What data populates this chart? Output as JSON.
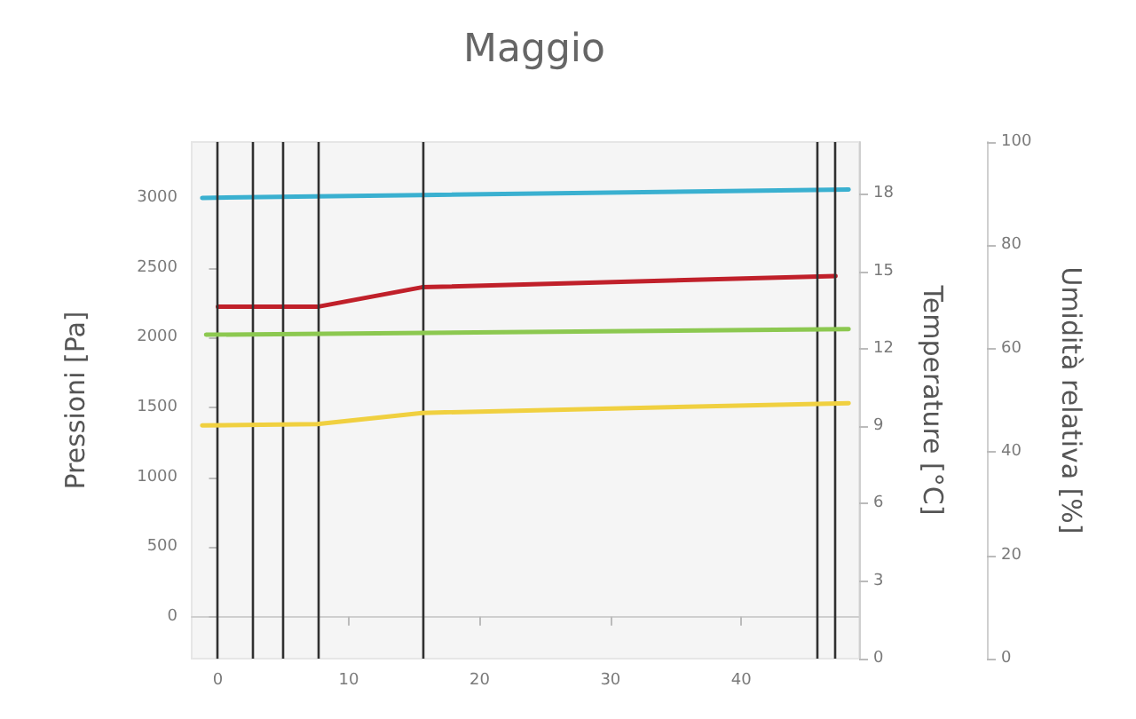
{
  "chart_data": {
    "type": "line",
    "title": "Maggio",
    "ylabel": "Pressioni [Pa]",
    "y2label": "Temperature [°C]",
    "y3label": "Umidità relativa [%]",
    "xlim": [
      -2,
      49
    ],
    "xticks": [
      0,
      10,
      20,
      30,
      40
    ],
    "ylim": [
      -300,
      3400
    ],
    "yticks": [
      0,
      500,
      1000,
      1500,
      2000,
      2500,
      3000
    ],
    "y2lim": [
      0,
      20
    ],
    "y2ticks": [
      0,
      3,
      6,
      9,
      12,
      15,
      18
    ],
    "y3lim": [
      0,
      100
    ],
    "y3ticks": [
      0,
      20,
      40,
      60,
      80,
      100
    ],
    "marker": "none",
    "line_style": "solid",
    "series": [
      {
        "color": "#3ab0d0",
        "x": [
          -1.2,
          15.6,
          48.2
        ],
        "values": [
          3000,
          3020,
          3060
        ]
      },
      {
        "color": "#c0202a",
        "x": [
          0,
          7.6,
          15.6,
          47.2
        ],
        "values": [
          2220,
          2220,
          2360,
          2440
        ]
      },
      {
        "color": "#8cc850",
        "x": [
          -0.9,
          48.2
        ],
        "values": [
          2020,
          2060
        ]
      },
      {
        "color": "#f0d040",
        "x": [
          -1.2,
          7.6,
          15.6,
          48.2
        ],
        "values": [
          1370,
          1380,
          1460,
          1530
        ]
      }
    ],
    "ref_lines": [
      {
        "axis": "x",
        "value": 0,
        "color": "#303030"
      },
      {
        "axis": "x",
        "value": 2.6,
        "color": "#303030"
      },
      {
        "axis": "x",
        "value": 5,
        "color": "#303030"
      },
      {
        "axis": "x",
        "value": 7.6,
        "color": "#303030"
      },
      {
        "axis": "x",
        "value": 15.6,
        "color": "#303030"
      },
      {
        "axis": "x",
        "value": 45.8,
        "color": "#303030"
      },
      {
        "axis": "x",
        "value": 47.2,
        "color": "#303030"
      }
    ]
  }
}
